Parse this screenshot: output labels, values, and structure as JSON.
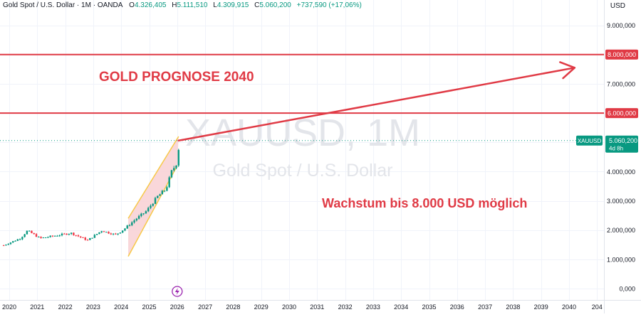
{
  "legend": {
    "symbol_title": "Gold Spot / U.S. Dollar · 1M · OANDA",
    "open_label": "O",
    "open": "4.326,405",
    "high_label": "H",
    "high": "5.111,510",
    "low_label": "L",
    "low": "4.309,915",
    "close_label": "C",
    "close": "5.060,200",
    "change": "+737,590 (+17,06%)"
  },
  "currency": "USD",
  "watermark": {
    "symbol": "XAUUSD, 1M",
    "name": "Gold Spot / U.S. Dollar"
  },
  "annotations": {
    "title": "GOLD PROGNOSE 2040",
    "subtitle": "Wachstum bis 8.000 USD möglich"
  },
  "price_tag": {
    "symbol": "XAUUSD",
    "value": "5.060,200",
    "countdown": "4d 8h"
  },
  "colors": {
    "accent_red": "#e03a45",
    "up": "#089981",
    "down": "#f23645",
    "channel_stroke": "#f7c948",
    "channel_fill": "#f8d0d3"
  },
  "icons": {
    "event_marker": "lightning-icon"
  },
  "chart_data": {
    "type": "candlestick",
    "x_ticks": [
      "2020",
      "2021",
      "2022",
      "2023",
      "2024",
      "2025",
      "2026",
      "2027",
      "2028",
      "2029",
      "2030",
      "2031",
      "2032",
      "2033",
      "2034",
      "2035",
      "2036",
      "2037",
      "2038",
      "2039",
      "2040",
      "204"
    ],
    "y_ticks": [
      "0,000",
      "1.000,000",
      "2.000,000",
      "3.000,000",
      "4.000,000",
      "5.000,000",
      "6.000,000",
      "7.000,000",
      "8.000,000",
      "9.000,000"
    ],
    "y_tick_values": [
      0,
      1000,
      2000,
      3000,
      4000,
      5000,
      6000,
      7000,
      8000,
      9000
    ],
    "ylim": [
      -100,
      9700
    ],
    "xlim": [
      2019.85,
      2040.95
    ],
    "current_price": 5060.2,
    "horizontal_levels": [
      {
        "value": 8000,
        "label": "8.000,000"
      },
      {
        "value": 6000,
        "label": "6.000,000"
      }
    ],
    "projection": {
      "from": [
        2026.05,
        5060
      ],
      "to": [
        2040.2,
        7550
      ]
    },
    "channel": {
      "lower": [
        [
          2024.25,
          1100
        ],
        [
          2026.0,
          4200
        ]
      ],
      "upper": [
        [
          2024.25,
          2400
        ],
        [
          2026.05,
          5200
        ]
      ]
    },
    "monthly_close_anchors": [
      [
        2019.8,
        1480
      ],
      [
        2020.4,
        1720
      ],
      [
        2020.65,
        1980
      ],
      [
        2021.1,
        1720
      ],
      [
        2021.6,
        1800
      ],
      [
        2022.2,
        1900
      ],
      [
        2022.8,
        1650
      ],
      [
        2023.3,
        1980
      ],
      [
        2023.8,
        1840
      ],
      [
        2024.1,
        2030
      ],
      [
        2024.5,
        2360
      ],
      [
        2024.9,
        2650
      ],
      [
        2025.3,
        3150
      ],
      [
        2025.6,
        3400
      ],
      [
        2025.8,
        4000
      ],
      [
        2026.0,
        4320
      ],
      [
        2026.08,
        5060
      ]
    ]
  }
}
